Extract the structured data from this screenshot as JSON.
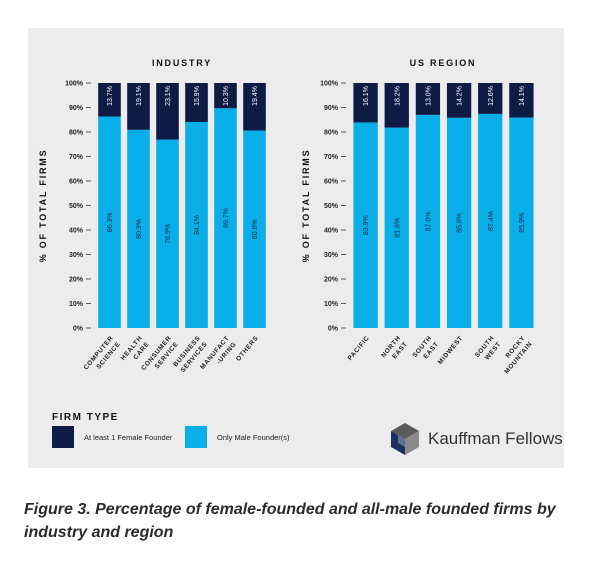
{
  "chart_data": [
    {
      "type": "bar",
      "stacked": true,
      "title": "INDUSTRY",
      "ylabel": "% OF TOTAL FIRMS",
      "ylim": [
        0,
        100
      ],
      "y_ticks": [
        "0%",
        "10%",
        "20%",
        "30%",
        "40%",
        "50%",
        "60%",
        "70%",
        "80%",
        "90%",
        "100%"
      ],
      "categories": [
        [
          "COMPUTER",
          "SCIENCE"
        ],
        [
          "HEALTH",
          "CARE"
        ],
        [
          "CONSUMER",
          "SERVICE"
        ],
        [
          "BUSINESS",
          "SERVICES"
        ],
        [
          "MANUFACT",
          "-URING"
        ],
        [
          "OTHERS"
        ]
      ],
      "series": [
        {
          "name": "Only Male Founder(s)",
          "values": [
            86.3,
            80.9,
            76.9,
            84.1,
            89.7,
            80.6
          ],
          "labels": [
            "86.3%",
            "80.9%",
            "76.9%",
            "84.1%",
            "89.7%",
            "80.6%"
          ]
        },
        {
          "name": "At least 1 Female Founder",
          "values": [
            13.7,
            19.1,
            23.1,
            15.9,
            10.3,
            19.4
          ],
          "labels": [
            "13.7%",
            "19.1%",
            "23.1%",
            "15.9%",
            "10.3%",
            "19.4%"
          ]
        }
      ]
    },
    {
      "type": "bar",
      "stacked": true,
      "title": "US REGION",
      "ylabel": "% OF TOTAL FIRMS",
      "ylim": [
        0,
        100
      ],
      "y_ticks": [
        "0%",
        "10%",
        "20%",
        "30%",
        "40%",
        "50%",
        "60%",
        "70%",
        "80%",
        "90%",
        "100%"
      ],
      "categories": [
        [
          "PACIFIC"
        ],
        [
          "NORTH",
          "EAST"
        ],
        [
          "SOUTH",
          "EAST"
        ],
        [
          "MIDWEST"
        ],
        [
          "SOUTH",
          "WEST"
        ],
        [
          "ROCKY",
          "MOUNTAIN"
        ]
      ],
      "series": [
        {
          "name": "Only Male Founder(s)",
          "values": [
            83.9,
            81.8,
            87.0,
            85.8,
            87.4,
            85.9
          ],
          "labels": [
            "83.9%",
            "81.8%",
            "87.0%",
            "85.8%",
            "87.4%",
            "85.9%"
          ]
        },
        {
          "name": "At least 1 Female Founder",
          "values": [
            16.1,
            18.2,
            13.0,
            14.2,
            12.6,
            14.1
          ],
          "labels": [
            "16.1%",
            "18.2%",
            "13.0%",
            "14.2%",
            "12.6%",
            "14.1%"
          ]
        }
      ]
    }
  ],
  "legend": {
    "title": "FIRM TYPE",
    "items": [
      {
        "label": "At least 1 Female Founder",
        "color": "#0e1b45"
      },
      {
        "label": "Only Male Founder(s)",
        "color": "#0aaee8"
      }
    ]
  },
  "colors": {
    "female": "#0e1b45",
    "male": "#0aaee8"
  },
  "logo": {
    "text": "Kauffman Fellows",
    "icon": "cube-logo-icon"
  },
  "caption": "Figure 3. Percentage of female-founded and all-male founded firms by industry and region"
}
